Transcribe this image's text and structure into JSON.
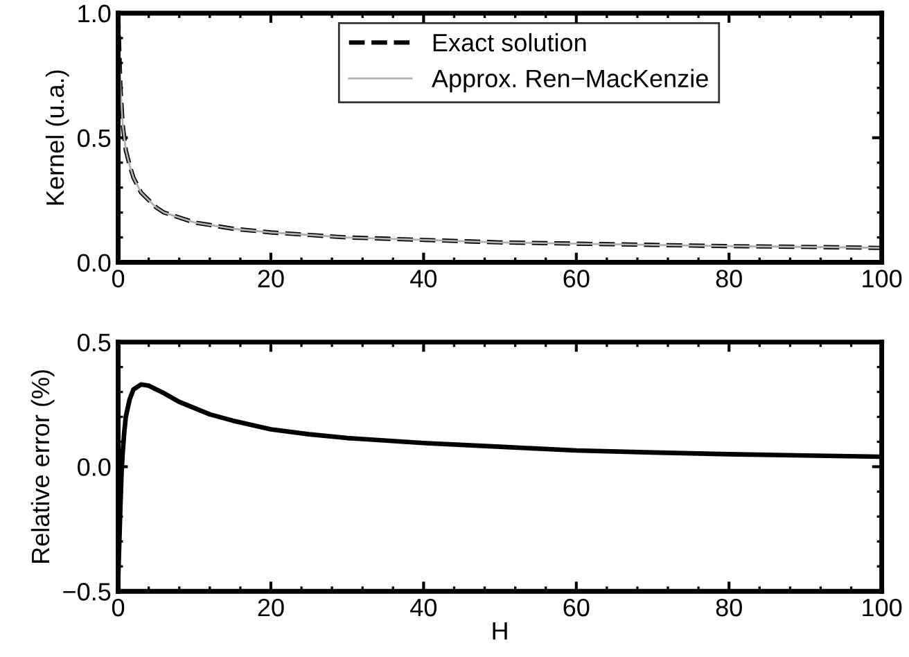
{
  "chart_data": [
    {
      "type": "line",
      "ylabel": "Kernel (u.a.)",
      "x": [
        0,
        0.3,
        0.6,
        1,
        1.5,
        2,
        3,
        4,
        5,
        6,
        8,
        10,
        12,
        15,
        20,
        25,
        30,
        40,
        50,
        60,
        70,
        80,
        90,
        100
      ],
      "xlim": [
        0,
        100
      ],
      "xticks": [
        0,
        20,
        40,
        60,
        80,
        100
      ],
      "ylim": [
        0,
        1
      ],
      "yticks": [
        {
          "value": 0,
          "label": "0.0"
        },
        {
          "value": 0.5,
          "label": "0.5"
        },
        {
          "value": 1,
          "label": "1.0"
        }
      ],
      "legend": "top right",
      "series": [
        {
          "name": "Exact solution",
          "color": "#000000",
          "line_style": "dashed",
          "values": [
            1.0,
            0.7,
            0.55,
            0.45,
            0.39,
            0.34,
            0.28,
            0.25,
            0.22,
            0.2,
            0.18,
            0.16,
            0.15,
            0.135,
            0.12,
            0.11,
            0.1,
            0.09,
            0.08,
            0.075,
            0.07,
            0.065,
            0.062,
            0.058
          ]
        },
        {
          "name": "Approx. Ren−MacKenzie",
          "color": "#b0b0b0",
          "line_style": "solid",
          "values": [
            1.0,
            0.7,
            0.55,
            0.45,
            0.39,
            0.34,
            0.28,
            0.25,
            0.22,
            0.2,
            0.18,
            0.16,
            0.15,
            0.135,
            0.12,
            0.11,
            0.1,
            0.09,
            0.08,
            0.075,
            0.07,
            0.065,
            0.062,
            0.058
          ]
        }
      ]
    },
    {
      "type": "line",
      "xlabel": "H",
      "ylabel": "Relative error (%)",
      "x": [
        0,
        0.15,
        0.3,
        0.45,
        0.6,
        0.8,
        1,
        1.5,
        2,
        3,
        4,
        5,
        6,
        8,
        10,
        12,
        15,
        20,
        25,
        30,
        40,
        50,
        60,
        70,
        80,
        90,
        100
      ],
      "xlim": [
        0,
        100
      ],
      "xticks": [
        0,
        20,
        40,
        60,
        80,
        100
      ],
      "ylim": [
        -0.5,
        0.5
      ],
      "yticks": [
        {
          "value": -0.5,
          "label": "−0.5"
        },
        {
          "value": 0,
          "label": "0.0"
        },
        {
          "value": 0.5,
          "label": "0.5"
        }
      ],
      "series": [
        {
          "color": "#000000",
          "line_style": "solid",
          "values": [
            -0.45,
            -0.3,
            -0.15,
            -0.02,
            0.06,
            0.14,
            0.2,
            0.27,
            0.31,
            0.33,
            0.325,
            0.31,
            0.295,
            0.26,
            0.235,
            0.21,
            0.185,
            0.15,
            0.13,
            0.115,
            0.095,
            0.08,
            0.065,
            0.057,
            0.05,
            0.045,
            0.04
          ]
        }
      ]
    }
  ]
}
